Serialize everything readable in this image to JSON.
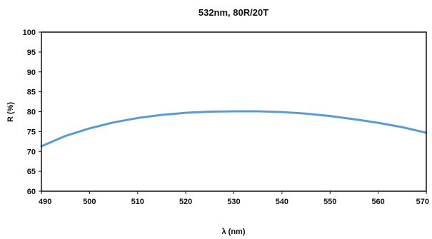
{
  "chart_data": {
    "type": "line",
    "title": "532nm, 80R/20T",
    "xlabel": "λ (nm)",
    "ylabel": "R (%)",
    "xlim": [
      490,
      570
    ],
    "ylim": [
      60,
      100
    ],
    "x_ticks": [
      490,
      500,
      510,
      520,
      530,
      540,
      550,
      560,
      570
    ],
    "y_ticks": [
      60,
      65,
      70,
      75,
      80,
      85,
      90,
      95,
      100
    ],
    "x_tick_labels": [
      "490",
      "500",
      "510",
      "520",
      "530",
      "540",
      "550",
      "560",
      "570"
    ],
    "y_tick_labels": [
      "60",
      "65",
      "70",
      "75",
      "80",
      "85",
      "90",
      "95",
      "100"
    ],
    "grid": false,
    "legend": "none",
    "series": [
      {
        "color": "#5b9bd5",
        "x": [
          490,
          495,
          500,
          505,
          510,
          515,
          520,
          525,
          530,
          532,
          535,
          540,
          545,
          550,
          555,
          560,
          565,
          570
        ],
        "y": [
          71.3,
          73.9,
          75.8,
          77.3,
          78.4,
          79.2,
          79.7,
          80.0,
          80.1,
          80.1,
          80.1,
          79.9,
          79.5,
          78.9,
          78.1,
          77.2,
          76.1,
          74.7
        ]
      }
    ]
  }
}
